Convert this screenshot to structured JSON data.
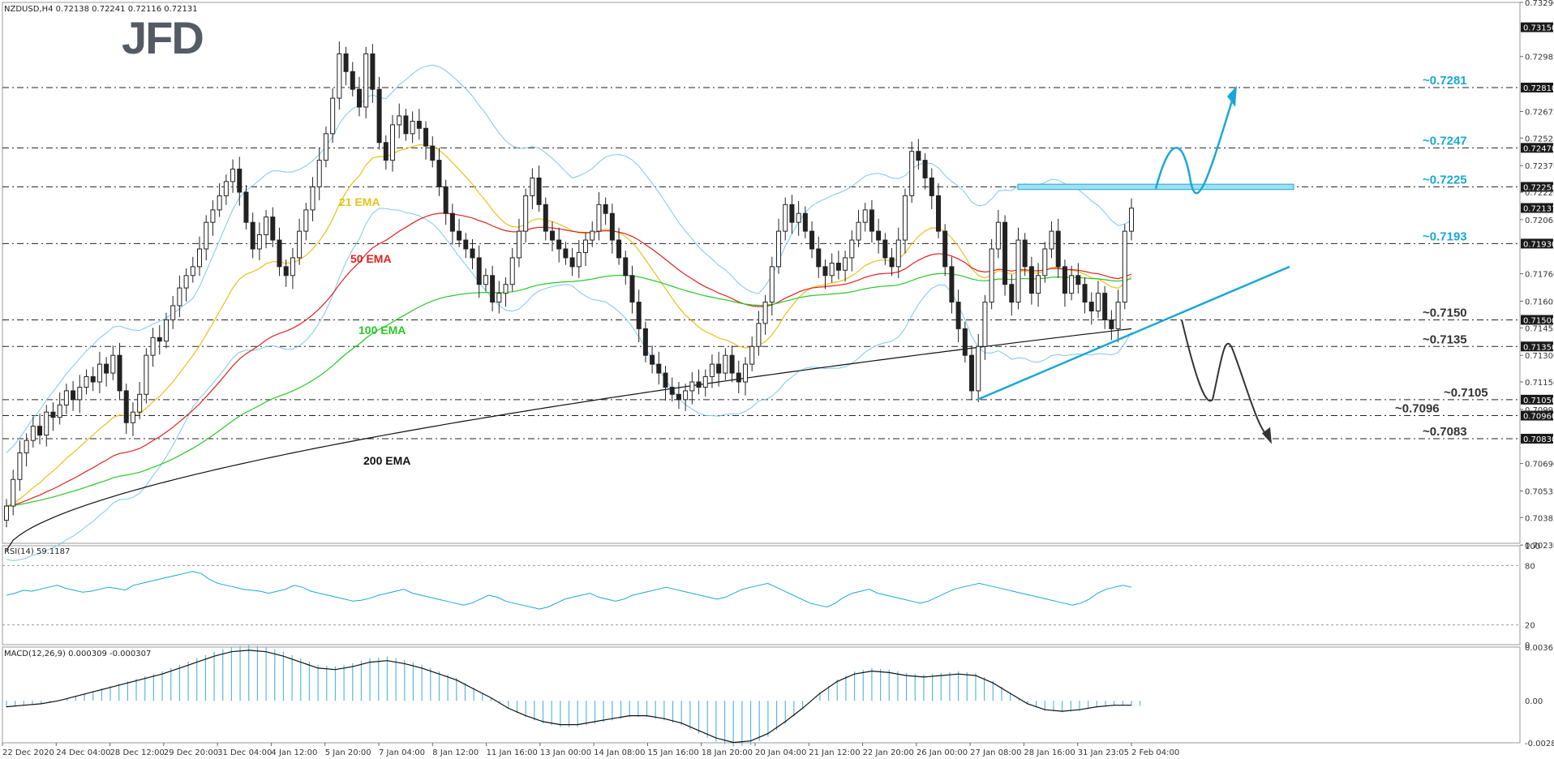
{
  "chart_data": {
    "type": "candlestick",
    "symbol_title": "NZDUSD,H4  0.72138 0.72241 0.72116 0.72131",
    "logo": "JFD",
    "price_axis": {
      "min": 0.7024,
      "max": 0.7329,
      "ticks": [
        "0.73290",
        "0.73150",
        "0.72985",
        "0.72810",
        "0.72675",
        "0.72525",
        "0.72470",
        "0.72370",
        "0.72250",
        "0.72220",
        "0.72131",
        "0.72065",
        "0.71930",
        "0.71760",
        "0.71605",
        "0.71500",
        "0.71455",
        "0.71350",
        "0.71300",
        "0.71150",
        "0.71050",
        "0.70995",
        "0.70960",
        "0.70830",
        "0.70690",
        "0.70535",
        "0.70385",
        "0.70230"
      ],
      "boxed_ticks": [
        "0.73150",
        "0.72810",
        "0.72470",
        "0.72250",
        "0.72131",
        "0.71930",
        "0.71500",
        "0.71350",
        "0.71050",
        "0.70960",
        "0.70830"
      ]
    },
    "x_axis": {
      "labels": [
        "22 Dec 2020",
        "24 Dec 04:00",
        "28 Dec 12:00",
        "29 Dec 20:00",
        "31 Dec 04:00",
        "4 Jan 12:00",
        "5 Jan 20:00",
        "7 Jan 04:00",
        "8 Jan 12:00",
        "11 Jan 16:00",
        "13 Jan 00:00",
        "14 Jan 08:00",
        "15 Jan 16:00",
        "18 Jan 20:00",
        "20 Jan 04:00",
        "21 Jan 12:00",
        "22 Jan 20:00",
        "26 Jan 00:00",
        "27 Jan 08:00",
        "28 Jan 16:00",
        "31 Jan 23:05",
        "2 Feb 04:00"
      ]
    },
    "levels": [
      {
        "label": "~0.7281",
        "value": 0.7281,
        "color": "#1aa7d6"
      },
      {
        "label": "~0.7247",
        "value": 0.7247,
        "color": "#1aa7d6"
      },
      {
        "label": "~0.7225",
        "value": 0.7225,
        "color": "#1aa7d6"
      },
      {
        "label": "~0.7193",
        "value": 0.7193,
        "color": "#1aa7d6"
      },
      {
        "label": "~0.7150",
        "value": 0.715,
        "color": "#333333"
      },
      {
        "label": "~0.7135",
        "value": 0.7135,
        "color": "#333333"
      },
      {
        "label": "~0.7105",
        "value": 0.7105,
        "color": "#333333"
      },
      {
        "label": "~0.7096",
        "value": 0.7096,
        "color": "#333333"
      },
      {
        "label": "~0.7083",
        "value": 0.7083,
        "color": "#333333"
      }
    ],
    "ema_labels": [
      {
        "label": "21 EMA",
        "color": "#e6c21a"
      },
      {
        "label": "50 EMA",
        "color": "#e02020"
      },
      {
        "label": "100 EMA",
        "color": "#28c828"
      },
      {
        "label": "200 EMA",
        "color": "#111111"
      }
    ],
    "candles_close": [
      0.7045,
      0.706,
      0.7075,
      0.7082,
      0.709,
      0.7085,
      0.7098,
      0.7095,
      0.7102,
      0.711,
      0.7105,
      0.7112,
      0.7118,
      0.7115,
      0.7125,
      0.712,
      0.713,
      0.711,
      0.7092,
      0.7098,
      0.7108,
      0.713,
      0.714,
      0.7138,
      0.715,
      0.7158,
      0.7168,
      0.7175,
      0.718,
      0.719,
      0.7205,
      0.7212,
      0.722,
      0.7228,
      0.7235,
      0.7222,
      0.7205,
      0.719,
      0.7198,
      0.7208,
      0.7195,
      0.718,
      0.7175,
      0.7185,
      0.72,
      0.7212,
      0.7225,
      0.724,
      0.7255,
      0.7275,
      0.73,
      0.729,
      0.728,
      0.727,
      0.73,
      0.728,
      0.725,
      0.724,
      0.726,
      0.7265,
      0.7255,
      0.7262,
      0.7258,
      0.7248,
      0.724,
      0.7225,
      0.721,
      0.72,
      0.7195,
      0.719,
      0.7185,
      0.717,
      0.7175,
      0.716,
      0.7165,
      0.717,
      0.7185,
      0.72,
      0.722,
      0.723,
      0.7215,
      0.72,
      0.7195,
      0.719,
      0.7185,
      0.718,
      0.7188,
      0.7195,
      0.72,
      0.7215,
      0.721,
      0.7195,
      0.7185,
      0.7175,
      0.716,
      0.7145,
      0.713,
      0.7125,
      0.712,
      0.7112,
      0.7108,
      0.7105,
      0.711,
      0.7115,
      0.7112,
      0.7118,
      0.7125,
      0.712,
      0.713,
      0.712,
      0.7115,
      0.7125,
      0.7135,
      0.7148,
      0.716,
      0.718,
      0.72,
      0.7215,
      0.7205,
      0.721,
      0.72,
      0.719,
      0.718,
      0.7175,
      0.7182,
      0.7178,
      0.7185,
      0.7195,
      0.7205,
      0.7212,
      0.72,
      0.7195,
      0.7185,
      0.718,
      0.7195,
      0.722,
      0.7245,
      0.724,
      0.723,
      0.722,
      0.72,
      0.718,
      0.716,
      0.7145,
      0.713,
      0.711,
      0.7135,
      0.716,
      0.719,
      0.7205,
      0.717,
      0.716,
      0.7195,
      0.718,
      0.7165,
      0.7175,
      0.719,
      0.72,
      0.718,
      0.7165,
      0.7175,
      0.717,
      0.716,
      0.7155,
      0.7165,
      0.715,
      0.7145,
      0.716,
      0.72,
      0.7213
    ],
    "series": [
      {
        "name": "21 EMA",
        "values": []
      },
      {
        "name": "50 EMA",
        "values": []
      },
      {
        "name": "100 EMA",
        "values": []
      },
      {
        "name": "200 EMA",
        "values": []
      }
    ],
    "rsi": {
      "title": "RSI(14) 59.1187",
      "axis_ticks": [
        "100",
        "80",
        "20",
        "0"
      ],
      "values": [
        50,
        52,
        55,
        54,
        56,
        58,
        60,
        57,
        55,
        53,
        54,
        56,
        58,
        57,
        55,
        60,
        62,
        64,
        66,
        68,
        70,
        72,
        74,
        72,
        66,
        62,
        60,
        58,
        56,
        55,
        54,
        52,
        54,
        56,
        60,
        58,
        54,
        52,
        50,
        48,
        46,
        44,
        45,
        47,
        50,
        52,
        54,
        56,
        52,
        50,
        48,
        46,
        44,
        42,
        40,
        42,
        46,
        50,
        48,
        44,
        42,
        40,
        38,
        36,
        38,
        42,
        46,
        48,
        50,
        52,
        48,
        46,
        44,
        46,
        50,
        52,
        54,
        56,
        58,
        56,
        54,
        52,
        50,
        48,
        46,
        48,
        52,
        56,
        58,
        60,
        62,
        58,
        54,
        50,
        46,
        42,
        40,
        38,
        42,
        48,
        52,
        54,
        56,
        52,
        50,
        48,
        46,
        44,
        42,
        44,
        48,
        52,
        56,
        58,
        60,
        62,
        60,
        58,
        56,
        54,
        52,
        50,
        48,
        46,
        44,
        42,
        40,
        42,
        46,
        52,
        56,
        58,
        60,
        58
      ]
    },
    "macd": {
      "title": "MACD(12,26,9) 0.000309 -0.000307",
      "axis_ticks": [
        "0.003613",
        "0.00",
        "-0.002823"
      ],
      "signal": [
        -0.0004,
        -0.0003,
        -0.0002,
        0.0,
        0.0003,
        0.0006,
        0.0009,
        0.0012,
        0.0015,
        0.0018,
        0.0022,
        0.0026,
        0.003,
        0.0033,
        0.0034,
        0.0033,
        0.003,
        0.0026,
        0.0022,
        0.0021,
        0.0023,
        0.0026,
        0.0027,
        0.0025,
        0.0022,
        0.0018,
        0.0014,
        0.0008,
        0.0002,
        -0.0005,
        -0.001,
        -0.0014,
        -0.0016,
        -0.0016,
        -0.0014,
        -0.0012,
        -0.001,
        -0.001,
        -0.0012,
        -0.0015,
        -0.002,
        -0.0025,
        -0.0028,
        -0.0027,
        -0.0022,
        -0.0014,
        -0.0005,
        0.0005,
        0.0013,
        0.0018,
        0.002,
        0.0019,
        0.0017,
        0.0016,
        0.0017,
        0.0018,
        0.0017,
        0.0012,
        0.0005,
        -0.0002,
        -0.0006,
        -0.0007,
        -0.0006,
        -0.0004,
        -0.0003,
        -0.0003
      ]
    }
  }
}
